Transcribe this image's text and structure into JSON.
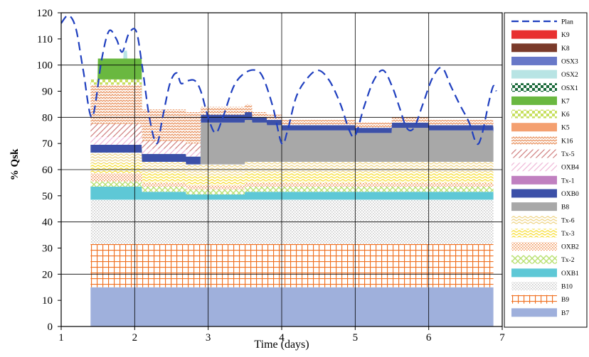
{
  "chart_data": {
    "type": "area",
    "title": "",
    "xlabel": "Time (days)",
    "ylabel": "% Qsk",
    "xlim": [
      1,
      7
    ],
    "ylim": [
      0,
      120
    ],
    "x_ticks": [
      1,
      2,
      3,
      4,
      5,
      6,
      7
    ],
    "y_ticks": [
      0,
      10,
      20,
      30,
      40,
      50,
      60,
      70,
      80,
      90,
      100,
      110,
      120
    ],
    "grid": true,
    "legend_position": "right, outside plot",
    "stack_start": 1.4,
    "stack_end": 6.88,
    "series": [
      {
        "name": "B7",
        "color": "#9fb0dc",
        "pattern": "solid",
        "values": [
          [
            1.4,
            15
          ],
          [
            6.88,
            15
          ]
        ]
      },
      {
        "name": "B9",
        "color": "#f07020",
        "pattern": "grid",
        "values": [
          [
            1.4,
            16.5
          ],
          [
            6.88,
            16.5
          ]
        ]
      },
      {
        "name": "B10",
        "color": "#c8c8c8",
        "pattern": "dots",
        "values": [
          [
            1.4,
            17
          ],
          [
            6.88,
            17
          ]
        ]
      },
      {
        "name": "OXB1",
        "color": "#5ec8d6",
        "pattern": "solid",
        "values": [
          [
            1.4,
            5
          ],
          [
            2.1,
            3
          ],
          [
            2.7,
            2
          ],
          [
            3.5,
            3
          ],
          [
            6.88,
            3
          ]
        ]
      },
      {
        "name": "Tx-2",
        "color": "#b8e070",
        "pattern": "cross",
        "values": [
          [
            1.4,
            2
          ],
          [
            6.88,
            2
          ]
        ]
      },
      {
        "name": "OXB2",
        "color": "#f09050",
        "pattern": "dots",
        "values": [
          [
            1.4,
            3
          ],
          [
            2.1,
            1.5
          ],
          [
            6.88,
            1.5
          ]
        ]
      },
      {
        "name": "Tx-3",
        "color": "#f8e040",
        "pattern": "wave",
        "values": [
          [
            1.4,
            4
          ],
          [
            6.88,
            4
          ]
        ]
      },
      {
        "name": "Tx-6",
        "color": "#f0d890",
        "pattern": "wave",
        "values": [
          [
            1.4,
            4
          ],
          [
            6.88,
            4
          ]
        ]
      },
      {
        "name": "B8",
        "color": "#a8a8a8",
        "pattern": "solid",
        "values": [
          [
            1.4,
            0
          ],
          [
            2.9,
            0
          ],
          [
            2.9,
            16
          ],
          [
            3.6,
            15
          ],
          [
            3.8,
            14
          ],
          [
            4.0,
            12
          ],
          [
            4.5,
            12
          ],
          [
            5.0,
            11
          ],
          [
            5.5,
            13
          ],
          [
            6.0,
            12
          ],
          [
            6.5,
            12
          ],
          [
            6.88,
            11
          ]
        ]
      },
      {
        "name": "OXB0",
        "color": "#3c50a8",
        "pattern": "solid",
        "values": [
          [
            1.4,
            3
          ],
          [
            2.1,
            3
          ],
          [
            2.9,
            3
          ],
          [
            3.6,
            2
          ],
          [
            4.0,
            2
          ],
          [
            6.88,
            2
          ]
        ]
      },
      {
        "name": "Tx-1",
        "color": "#c080c0",
        "pattern": "solid",
        "values": [
          [
            1.4,
            0
          ],
          [
            6.88,
            0
          ]
        ]
      },
      {
        "name": "OXB4",
        "color": "#f0b8d8",
        "pattern": "hatch",
        "values": [
          [
            1.4,
            3
          ],
          [
            2.1,
            2
          ],
          [
            2.9,
            0
          ],
          [
            6.88,
            0
          ]
        ]
      },
      {
        "name": "Tx-5",
        "color": "#d08080",
        "pattern": "hatch",
        "values": [
          [
            1.4,
            5
          ],
          [
            2.1,
            3
          ],
          [
            2.9,
            0
          ],
          [
            6.88,
            0
          ]
        ]
      },
      {
        "name": "K16",
        "color": "#e8905c",
        "pattern": "zigzag",
        "values": [
          [
            1.4,
            15
          ],
          [
            2.1,
            12
          ],
          [
            2.9,
            3
          ],
          [
            3.6,
            2
          ],
          [
            4.0,
            2
          ],
          [
            6.88,
            2
          ]
        ]
      },
      {
        "name": "K5",
        "color": "#f4a070",
        "pattern": "solid",
        "values": [
          [
            1.4,
            0
          ],
          [
            6.88,
            0
          ]
        ]
      },
      {
        "name": "K6",
        "color": "#c8e060",
        "pattern": "checker",
        "values": [
          [
            1.4,
            2
          ],
          [
            2.1,
            0
          ],
          [
            6.88,
            0
          ]
        ]
      },
      {
        "name": "K7",
        "color": "#6ab840",
        "pattern": "solid",
        "values": [
          [
            1.4,
            0
          ],
          [
            1.5,
            8
          ],
          [
            2.1,
            6
          ],
          [
            2.1,
            0
          ],
          [
            6.88,
            0
          ]
        ]
      },
      {
        "name": "OSX1",
        "color": "#1a6a3a",
        "pattern": "checker",
        "values": [
          [
            1.4,
            0
          ],
          [
            6.88,
            0
          ]
        ]
      },
      {
        "name": "OSX2",
        "color": "#b8e4e4",
        "pattern": "solid",
        "values": [
          [
            1.4,
            0
          ],
          [
            1.85,
            0
          ],
          [
            1.85,
            3
          ],
          [
            1.9,
            3
          ],
          [
            1.9,
            0
          ],
          [
            6.88,
            0
          ]
        ]
      },
      {
        "name": "OSX3",
        "color": "#6878c8",
        "pattern": "solid",
        "values": [
          [
            1.4,
            0
          ],
          [
            6.88,
            0
          ]
        ]
      },
      {
        "name": "K8",
        "color": "#7a3a2a",
        "pattern": "solid",
        "values": [
          [
            1.4,
            0
          ],
          [
            6.88,
            0
          ]
        ]
      },
      {
        "name": "K9",
        "color": "#e83030",
        "pattern": "solid",
        "values": [
          [
            1.4,
            0
          ],
          [
            6.88,
            0
          ]
        ]
      }
    ],
    "plan_line": {
      "name": "Plan",
      "color": "#1f3fbf",
      "style": "dashed",
      "points": [
        [
          1.0,
          116
        ],
        [
          1.1,
          119
        ],
        [
          1.2,
          114
        ],
        [
          1.3,
          98
        ],
        [
          1.42,
          80
        ],
        [
          1.55,
          102
        ],
        [
          1.65,
          113
        ],
        [
          1.75,
          110
        ],
        [
          1.83,
          105
        ],
        [
          1.92,
          112
        ],
        [
          2.02,
          113
        ],
        [
          2.1,
          100
        ],
        [
          2.2,
          80
        ],
        [
          2.3,
          70
        ],
        [
          2.38,
          80
        ],
        [
          2.48,
          93
        ],
        [
          2.57,
          97
        ],
        [
          2.63,
          93
        ],
        [
          2.72,
          94
        ],
        [
          2.82,
          94
        ],
        [
          2.9,
          90
        ],
        [
          3.0,
          80
        ],
        [
          3.1,
          74
        ],
        [
          3.2,
          80
        ],
        [
          3.35,
          92
        ],
        [
          3.5,
          97
        ],
        [
          3.65,
          98
        ],
        [
          3.75,
          95
        ],
        [
          3.88,
          84
        ],
        [
          4.0,
          70
        ],
        [
          4.08,
          75
        ],
        [
          4.2,
          88
        ],
        [
          4.35,
          95
        ],
        [
          4.5,
          98
        ],
        [
          4.65,
          94
        ],
        [
          4.8,
          85
        ],
        [
          4.92,
          75
        ],
        [
          5.0,
          73
        ],
        [
          5.12,
          84
        ],
        [
          5.25,
          94
        ],
        [
          5.38,
          98
        ],
        [
          5.5,
          92
        ],
        [
          5.6,
          84
        ],
        [
          5.7,
          76
        ],
        [
          5.8,
          76
        ],
        [
          5.92,
          85
        ],
        [
          6.05,
          95
        ],
        [
          6.18,
          99
        ],
        [
          6.3,
          92
        ],
        [
          6.42,
          85
        ],
        [
          6.55,
          78
        ],
        [
          6.65,
          70
        ],
        [
          6.72,
          73
        ],
        [
          6.82,
          86
        ],
        [
          6.88,
          92
        ],
        [
          6.92,
          90
        ]
      ]
    }
  }
}
